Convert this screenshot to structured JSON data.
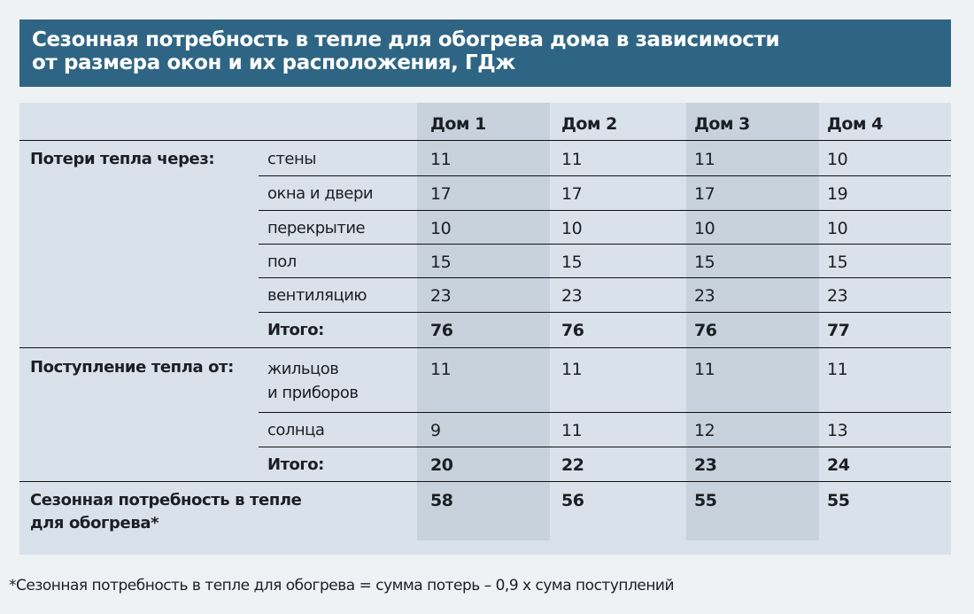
{
  "title": {
    "line1": "Сезонная потребность в тепле для обогрева дома в зависимости",
    "line2": "от размера окон и их расположения, ГДж"
  },
  "table": {
    "headers": [
      "Дом 1",
      "Дом 2",
      "Дом 3",
      "Дом 4"
    ],
    "losses_section": "Потери тепла через:",
    "losses_rows": [
      {
        "label": "стены",
        "values": [
          "11",
          "11",
          "11",
          "10"
        ]
      },
      {
        "label": "окна и двери",
        "values": [
          "17",
          "17",
          "17",
          "19"
        ]
      },
      {
        "label": "перекрытие",
        "values": [
          "10",
          "10",
          "10",
          "10"
        ]
      },
      {
        "label": "пол",
        "values": [
          "15",
          "15",
          "15",
          "15"
        ]
      },
      {
        "label": "вентиляцию",
        "values": [
          "23",
          "23",
          "23",
          "23"
        ]
      }
    ],
    "losses_total": {
      "label": "Итого:",
      "values": [
        "76",
        "76",
        "76",
        "77"
      ]
    },
    "gains_section": "Поступление тепла от:",
    "gains_rows": [
      {
        "label_line1": "жильцов",
        "label_line2": "и приборов",
        "values": [
          "11",
          "11",
          "11",
          "11"
        ]
      },
      {
        "label": "солнца",
        "values": [
          "9",
          "11",
          "12",
          "13"
        ]
      }
    ],
    "gains_total": {
      "label": "Итого:",
      "values": [
        "20",
        "22",
        "23",
        "24"
      ]
    },
    "demand_label_line1": "Сезонная потребность в тепле",
    "demand_label_line2": "для обогрева*",
    "demand_values": [
      "58",
      "56",
      "55",
      "55"
    ]
  },
  "footnote": "*Сезонная потребность в тепле для обогрева = сумма потерь – 0,9 х сума поступлений",
  "colors": {
    "title_bar": "#2f6584",
    "table_bg": "#d9e2eb",
    "column_shade": "#c7d2dd",
    "page_bg": "#eef2f5"
  }
}
